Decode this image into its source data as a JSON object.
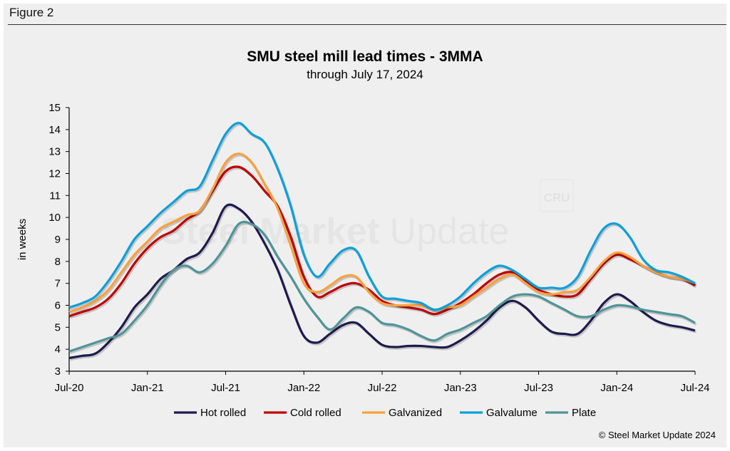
{
  "figure_label": "Figure 2",
  "credit": "© Steel Market Update 2024",
  "watermark": "Steel Market Update",
  "watermark_logo": "CRU",
  "chart_data": {
    "type": "line",
    "title": "SMU steel mill lead times - 3MMA",
    "subtitle": "through July 17, 2024",
    "xlabel": "",
    "ylabel": "in weeks",
    "ylim": [
      3,
      15
    ],
    "yticks": [
      3,
      4,
      5,
      6,
      7,
      8,
      9,
      10,
      11,
      12,
      13,
      14,
      15
    ],
    "x_start": "Jul-20",
    "x_end": "Jul-24",
    "xtick_labels": [
      "Jul-20",
      "Jan-21",
      "Jul-21",
      "Jan-22",
      "Jul-22",
      "Jan-23",
      "Jul-23",
      "Jan-24",
      "Jul-24"
    ],
    "x": [
      "Jul-20",
      "Aug-20",
      "Sep-20",
      "Oct-20",
      "Nov-20",
      "Dec-20",
      "Jan-21",
      "Feb-21",
      "Mar-21",
      "Apr-21",
      "May-21",
      "Jun-21",
      "Jul-21",
      "Aug-21",
      "Sep-21",
      "Oct-21",
      "Nov-21",
      "Dec-21",
      "Jan-22",
      "Feb-22",
      "Mar-22",
      "Apr-22",
      "May-22",
      "Jun-22",
      "Jul-22",
      "Aug-22",
      "Sep-22",
      "Oct-22",
      "Nov-22",
      "Dec-22",
      "Jan-23",
      "Feb-23",
      "Mar-23",
      "Apr-23",
      "May-23",
      "Jun-23",
      "Jul-23",
      "Aug-23",
      "Sep-23",
      "Oct-23",
      "Nov-23",
      "Dec-23",
      "Jan-24",
      "Feb-24",
      "Mar-24",
      "Apr-24",
      "May-24",
      "Jun-24",
      "Jul-24"
    ],
    "grid": false,
    "legend_position": "bottom",
    "series": [
      {
        "name": "Hot rolled",
        "color": "#1f1a4d",
        "values": [
          3.6,
          3.7,
          3.8,
          4.3,
          5.0,
          5.9,
          6.5,
          7.2,
          7.6,
          8.1,
          8.4,
          9.3,
          10.5,
          10.4,
          9.8,
          8.8,
          7.6,
          6.0,
          4.6,
          4.3,
          4.7,
          5.1,
          5.2,
          4.7,
          4.2,
          4.1,
          4.15,
          4.15,
          4.1,
          4.1,
          4.4,
          4.8,
          5.3,
          5.9,
          6.2,
          5.9,
          5.3,
          4.8,
          4.7,
          4.7,
          5.3,
          6.1,
          6.5,
          6.2,
          5.7,
          5.3,
          5.1,
          5.0,
          4.85
        ]
      },
      {
        "name": "Cold rolled",
        "color": "#c00000",
        "values": [
          5.5,
          5.7,
          5.9,
          6.3,
          7.0,
          7.9,
          8.6,
          9.1,
          9.4,
          9.9,
          10.3,
          11.2,
          12.1,
          12.3,
          11.9,
          11.2,
          10.5,
          9.1,
          7.3,
          6.4,
          6.6,
          6.9,
          7.0,
          6.7,
          6.2,
          6.0,
          5.9,
          5.8,
          5.6,
          5.8,
          6.1,
          6.5,
          7.0,
          7.4,
          7.5,
          7.1,
          6.7,
          6.5,
          6.4,
          6.5,
          7.2,
          7.9,
          8.3,
          8.1,
          7.8,
          7.5,
          7.3,
          7.2,
          6.9
        ]
      },
      {
        "name": "Galvanized",
        "color": "#f8a13f",
        "values": [
          5.7,
          5.9,
          6.2,
          6.7,
          7.5,
          8.3,
          8.9,
          9.5,
          9.8,
          10.1,
          10.3,
          11.3,
          12.5,
          12.9,
          12.5,
          11.5,
          10.4,
          8.7,
          7.0,
          6.6,
          6.9,
          7.3,
          7.3,
          6.6,
          6.1,
          6.0,
          6.0,
          6.0,
          5.8,
          5.9,
          6.0,
          6.4,
          6.8,
          7.2,
          7.4,
          7.0,
          6.6,
          6.5,
          6.6,
          6.7,
          7.3,
          8.0,
          8.4,
          8.2,
          7.8,
          7.5,
          7.3,
          7.2,
          7.0
        ]
      },
      {
        "name": "Galvalume",
        "color": "#0aa0dc",
        "values": [
          5.9,
          6.1,
          6.4,
          7.1,
          8.0,
          9.0,
          9.6,
          10.2,
          10.7,
          11.2,
          11.4,
          12.6,
          13.8,
          14.3,
          13.8,
          13.4,
          12.2,
          10.5,
          8.3,
          7.3,
          7.9,
          8.5,
          8.5,
          7.3,
          6.4,
          6.3,
          6.2,
          6.1,
          5.8,
          6.0,
          6.4,
          7.0,
          7.5,
          7.8,
          7.6,
          7.2,
          6.8,
          6.8,
          6.8,
          7.3,
          8.5,
          9.5,
          9.7,
          9.1,
          8.1,
          7.6,
          7.5,
          7.3,
          7.0
        ]
      },
      {
        "name": "Plate",
        "color": "#4f9499",
        "values": [
          3.9,
          4.1,
          4.3,
          4.5,
          4.7,
          5.3,
          6.0,
          6.9,
          7.6,
          7.8,
          7.5,
          7.9,
          8.7,
          9.7,
          9.7,
          9.2,
          8.2,
          7.3,
          6.3,
          5.5,
          4.9,
          5.4,
          5.9,
          5.7,
          5.2,
          5.1,
          4.9,
          4.6,
          4.4,
          4.7,
          4.9,
          5.2,
          5.5,
          6.0,
          6.4,
          6.5,
          6.4,
          6.1,
          5.8,
          5.5,
          5.5,
          5.8,
          6.0,
          5.95,
          5.8,
          5.7,
          5.6,
          5.5,
          5.2
        ]
      }
    ]
  }
}
